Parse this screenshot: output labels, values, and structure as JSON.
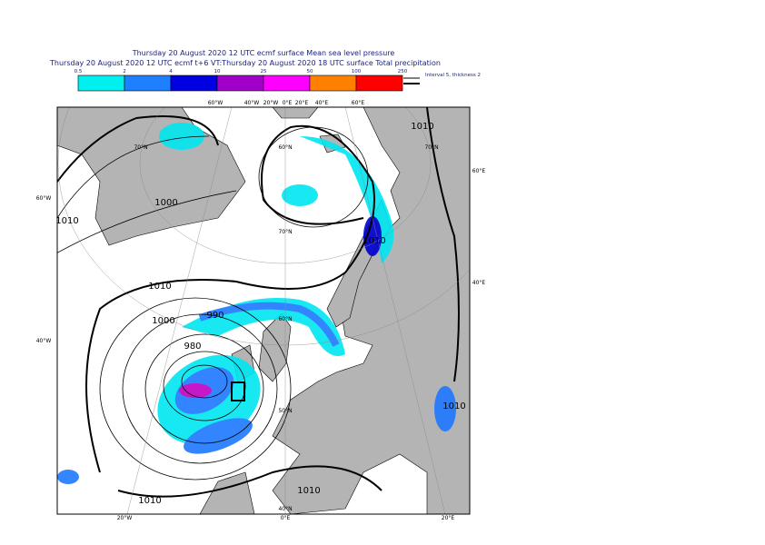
{
  "header": {
    "line1": "Thursday 20 August 2020 12 UTC ecmf surface  Mean sea level pressure",
    "line2": "Thursday 20 August 2020 12 UTC ecmf t+6 VT:Thursday 20 August 2020 18 UTC surface  Total precipitation"
  },
  "legend": {
    "labels": [
      "0.5",
      "2",
      "4",
      "10",
      "25",
      "50",
      "100",
      "250"
    ],
    "note": "Interval 5, thickness 2"
  },
  "map": {
    "grid_labels": [
      "60°W",
      "40°W",
      "20°W",
      "0°E",
      "20°E",
      "40°E",
      "60°E",
      "60°E",
      "40°E",
      "60°W",
      "40°W",
      "20°W",
      "0°E",
      "20°E",
      "40°N",
      "70°N",
      "60°N",
      "70°N",
      "60°N",
      "50°N",
      "70°N"
    ],
    "isobar_labels": [
      "1010",
      "1000",
      "990",
      "980",
      "1010",
      "1010",
      "1010",
      "1010",
      "1010",
      "1000",
      "1010"
    ]
  }
}
